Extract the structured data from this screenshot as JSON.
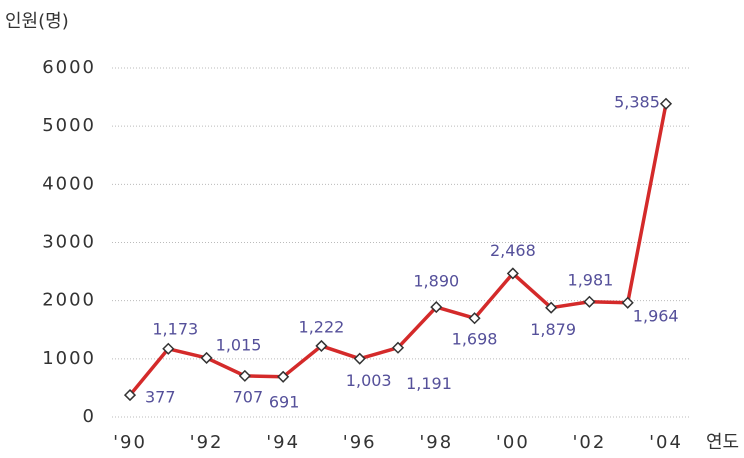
{
  "chart_data": {
    "type": "line",
    "y_label": "인원(명)",
    "x_label": "연도",
    "categories": [
      "'90",
      null,
      "'92",
      null,
      "'94",
      null,
      "'96",
      null,
      "'98",
      null,
      "'00",
      null,
      "'02",
      null,
      "'04"
    ],
    "series": [
      {
        "color": "#d42a2a",
        "values": [
          377,
          1173,
          1015,
          707,
          691,
          1222,
          1003,
          1191,
          1890,
          1698,
          2468,
          1879,
          1981,
          1964,
          5385
        ],
        "value_labels": [
          "377",
          "1,173",
          "1,015",
          "707",
          "691",
          "1,222",
          "1,003",
          "1,191",
          "1,890",
          "1,698",
          "2,468",
          "1,879",
          "1,981",
          "1,964",
          "5,385"
        ]
      }
    ],
    "ylim": [
      0,
      6000
    ],
    "yticks": [
      0,
      1000,
      2000,
      3000,
      4000,
      5000,
      6000
    ],
    "grid": true
  }
}
